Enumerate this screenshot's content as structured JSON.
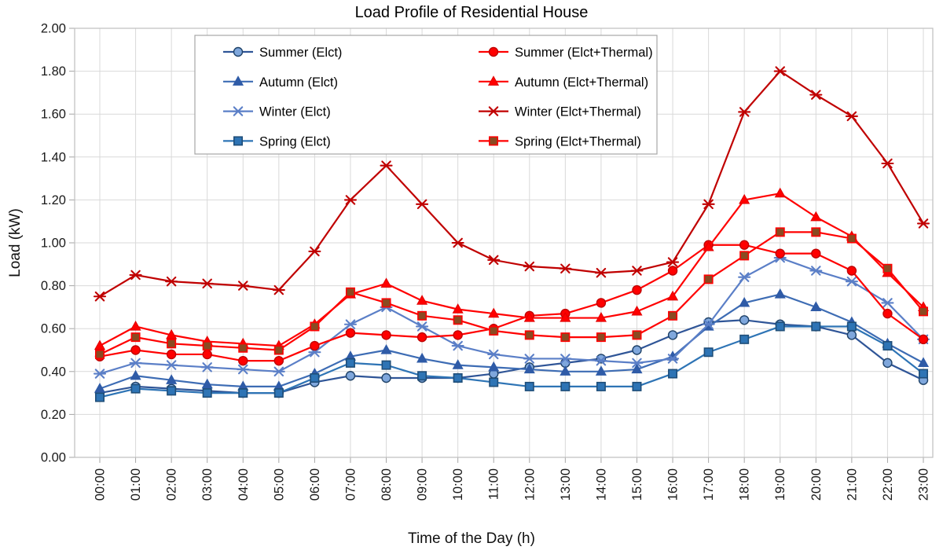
{
  "title": "Load Profile of Residential House",
  "chart_data": {
    "type": "line",
    "title": "Load Profile of Residential House",
    "xlabel": "Time of the Day (h)",
    "ylabel": "Load (kW)",
    "ylim": [
      0.0,
      2.0
    ],
    "ytick_step": 0.2,
    "ytick_labels": [
      "0.00",
      "0.20",
      "0.40",
      "0.60",
      "0.80",
      "1.00",
      "1.20",
      "1.40",
      "1.60",
      "1.80",
      "2.00"
    ],
    "grid": true,
    "legend_position": "top-inside",
    "categories": [
      "00:00",
      "01:00",
      "02:00",
      "03:00",
      "04:00",
      "05:00",
      "06:00",
      "07:00",
      "08:00",
      "09:00",
      "10:00",
      "11:00",
      "12:00",
      "13:00",
      "14:00",
      "15:00",
      "16:00",
      "17:00",
      "18:00",
      "19:00",
      "20:00",
      "21:00",
      "22:00",
      "23:00"
    ],
    "series": [
      {
        "name": "Summer (Elct)",
        "marker": "circle",
        "line_color": "#2F5597",
        "marker_fill": "#7FA7DC",
        "marker_stroke": "#1F4268",
        "values": [
          0.3,
          0.33,
          0.32,
          0.31,
          0.3,
          0.3,
          0.35,
          0.38,
          0.37,
          0.37,
          0.37,
          0.39,
          0.42,
          0.44,
          0.46,
          0.5,
          0.57,
          0.63,
          0.64,
          0.62,
          0.61,
          0.57,
          0.44,
          0.36
        ]
      },
      {
        "name": "Autumn (Elct)",
        "marker": "triangle",
        "line_color": "#3D6CB4",
        "marker_fill": "#2F5BA7",
        "marker_stroke": "#2F5BA7",
        "values": [
          0.32,
          0.38,
          0.36,
          0.34,
          0.33,
          0.33,
          0.39,
          0.47,
          0.5,
          0.46,
          0.43,
          0.42,
          0.41,
          0.4,
          0.4,
          0.41,
          0.47,
          0.61,
          0.72,
          0.76,
          0.7,
          0.63,
          0.53,
          0.44
        ]
      },
      {
        "name": "Winter (Elct)",
        "marker": "asterisk",
        "line_color": "#5B7FC7",
        "marker_fill": "#5B7FC7",
        "marker_stroke": "#5B7FC7",
        "values": [
          0.39,
          0.44,
          0.43,
          0.42,
          0.41,
          0.4,
          0.49,
          0.62,
          0.7,
          0.61,
          0.52,
          0.48,
          0.46,
          0.46,
          0.45,
          0.44,
          0.46,
          0.62,
          0.84,
          0.93,
          0.87,
          0.82,
          0.72,
          0.55
        ]
      },
      {
        "name": "Spring (Elct)",
        "marker": "square",
        "line_color": "#2E74B5",
        "marker_fill": "#2E74B5",
        "marker_stroke": "#1F4E79",
        "values": [
          0.28,
          0.32,
          0.31,
          0.3,
          0.3,
          0.3,
          0.37,
          0.44,
          0.43,
          0.38,
          0.37,
          0.35,
          0.33,
          0.33,
          0.33,
          0.33,
          0.39,
          0.49,
          0.55,
          0.61,
          0.61,
          0.61,
          0.52,
          0.39
        ]
      },
      {
        "name": "Summer (Elct+Thermal)",
        "marker": "circle",
        "line_color": "#FF0000",
        "marker_fill": "#FF0000",
        "marker_stroke": "#C00000",
        "values": [
          0.47,
          0.5,
          0.48,
          0.48,
          0.45,
          0.45,
          0.52,
          0.58,
          0.57,
          0.56,
          0.57,
          0.6,
          0.66,
          0.67,
          0.72,
          0.78,
          0.87,
          0.99,
          0.99,
          0.95,
          0.95,
          0.87,
          0.67,
          0.55
        ]
      },
      {
        "name": "Autumn (Elct+Thermal)",
        "marker": "triangle",
        "line_color": "#FF0000",
        "marker_fill": "#FF0000",
        "marker_stroke": "#E00000",
        "values": [
          0.52,
          0.61,
          0.57,
          0.54,
          0.53,
          0.52,
          0.62,
          0.76,
          0.81,
          0.73,
          0.69,
          0.67,
          0.65,
          0.65,
          0.65,
          0.68,
          0.75,
          0.98,
          1.2,
          1.23,
          1.12,
          1.03,
          0.86,
          0.7
        ]
      },
      {
        "name": "Winter (Elct+Thermal)",
        "marker": "asterisk",
        "line_color": "#C00000",
        "marker_fill": "#C00000",
        "marker_stroke": "#C00000",
        "values": [
          0.75,
          0.85,
          0.82,
          0.81,
          0.8,
          0.78,
          0.96,
          1.2,
          1.36,
          1.18,
          1.0,
          0.92,
          0.89,
          0.88,
          0.86,
          0.87,
          0.91,
          1.18,
          1.61,
          1.8,
          1.69,
          1.59,
          1.37,
          1.09
        ]
      },
      {
        "name": "Spring (Elct+Thermal)",
        "marker": "square",
        "line_color": "#FF0000",
        "marker_fill": "#8A4A21",
        "marker_stroke": "#FF0000",
        "values": [
          0.48,
          0.56,
          0.53,
          0.52,
          0.51,
          0.5,
          0.61,
          0.77,
          0.72,
          0.66,
          0.64,
          0.59,
          0.57,
          0.56,
          0.56,
          0.57,
          0.66,
          0.83,
          0.94,
          1.05,
          1.05,
          1.02,
          0.88,
          0.68
        ]
      }
    ],
    "colors": {
      "grid": "#D9D9D9",
      "plot_border": "#BFBFBF",
      "tick": "#A6A6A6",
      "legend_border": "#A6A6A6",
      "background": "#FFFFFF"
    }
  }
}
